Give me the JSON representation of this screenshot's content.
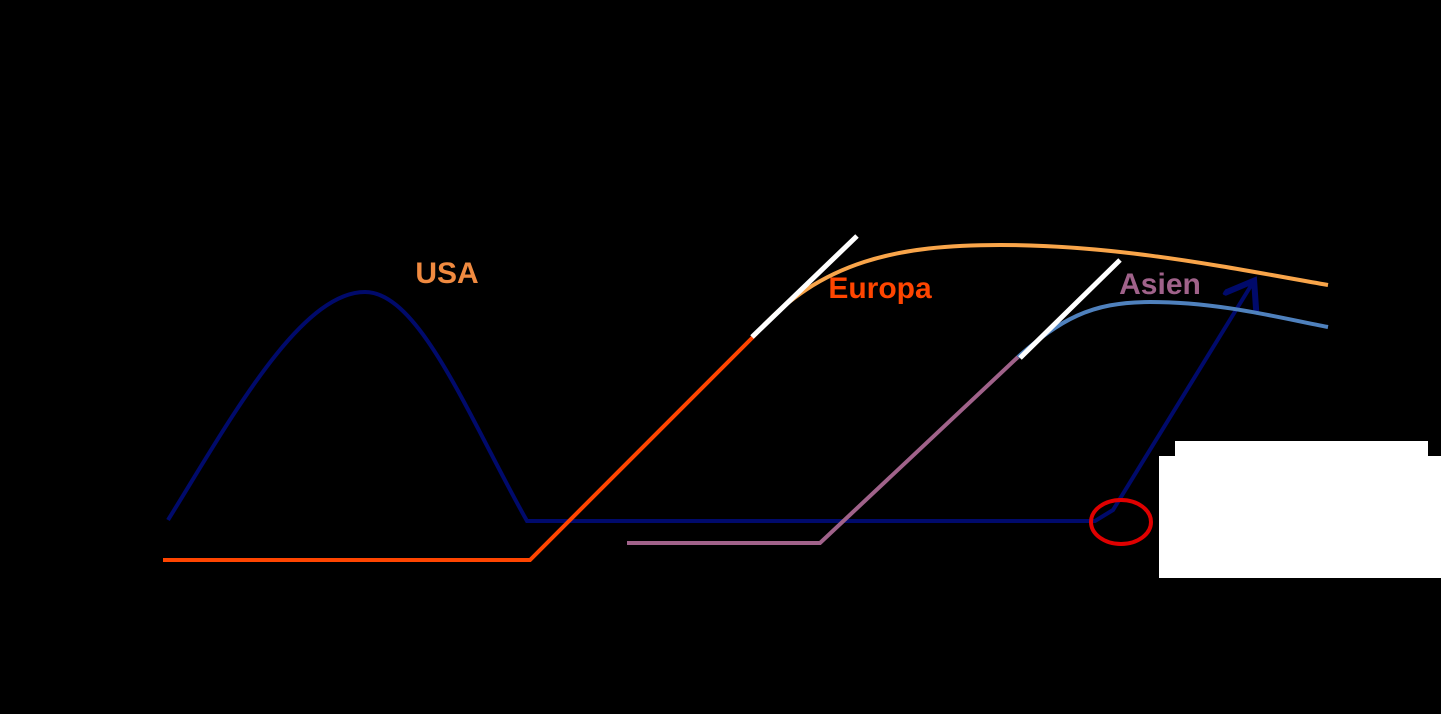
{
  "labels": {
    "usa": "USA",
    "europa": "Europa",
    "asien": "Asien"
  }
}
